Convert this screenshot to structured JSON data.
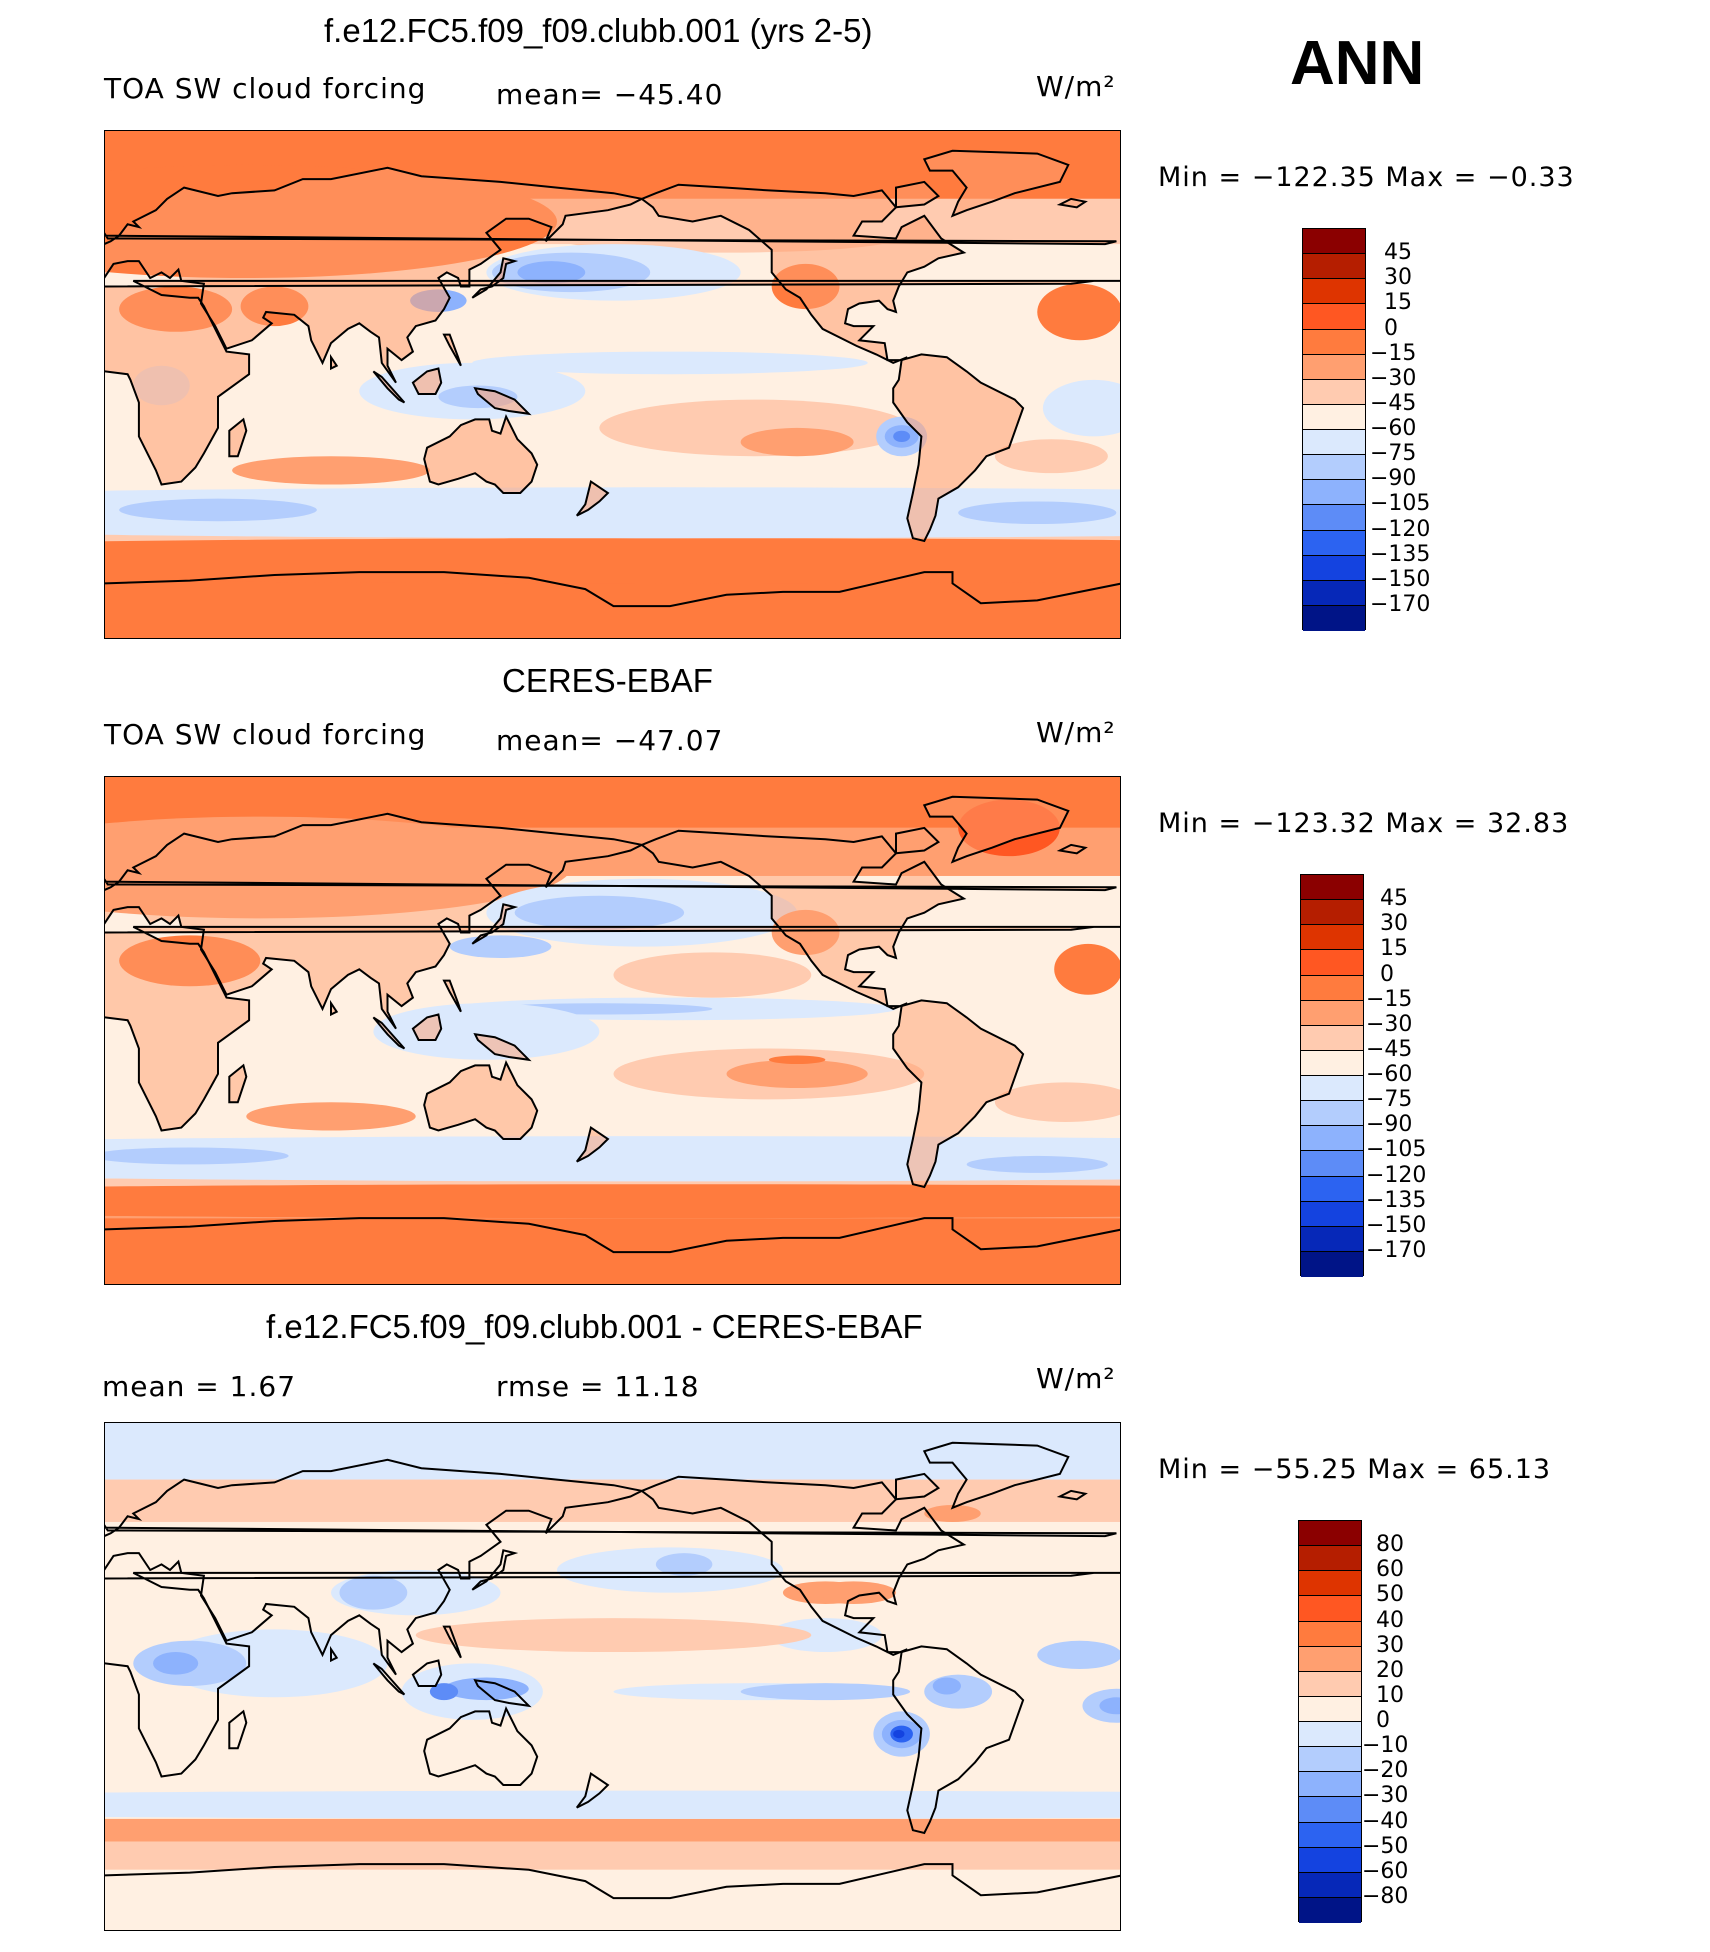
{
  "season": "ANN",
  "panels": [
    {
      "id": "model",
      "title": "f.e12.FC5.f09_f09.clubb.001 (yrs 2-5)",
      "left_label": "TOA SW cloud forcing",
      "stat_label": "mean= −45.40",
      "units": "W/m²",
      "min_max": "Min = −122.35 Max =  −0.33",
      "colorbar_labels": [
        "45",
        "30",
        "15",
        "0",
        "−15",
        "−30",
        "−45",
        "−60",
        "−75",
        "−90",
        "−105",
        "−120",
        "−135",
        "−150",
        "−170"
      ],
      "colors": [
        "#8b0000",
        "#b51e00",
        "#de3400",
        "#ff5722",
        "#ff7b3e",
        "#ff9f70",
        "#ffcbb0",
        "#fff0e2",
        "#dbe9fd",
        "#b3cdfd",
        "#8db2fd",
        "#5d8cf7",
        "#2c63f1",
        "#1443e0",
        "#0628b8",
        "#001487"
      ]
    },
    {
      "id": "obs",
      "title": "CERES-EBAF",
      "left_label": "TOA SW cloud forcing",
      "stat_label": "mean= −47.07",
      "units": "W/m²",
      "min_max": "Min = −123.32 Max =  32.83",
      "colorbar_labels": [
        "45",
        "30",
        "15",
        "0",
        "−15",
        "−30",
        "−45",
        "−60",
        "−75",
        "−90",
        "−105",
        "−120",
        "−135",
        "−150",
        "−170"
      ],
      "colors": [
        "#8b0000",
        "#b51e00",
        "#de3400",
        "#ff5722",
        "#ff7b3e",
        "#ff9f70",
        "#ffcbb0",
        "#fff0e2",
        "#dbe9fd",
        "#b3cdfd",
        "#8db2fd",
        "#5d8cf7",
        "#2c63f1",
        "#1443e0",
        "#0628b8",
        "#001487"
      ]
    },
    {
      "id": "diff",
      "title": "f.e12.FC5.f09_f09.clubb.001 - CERES-EBAF",
      "left_label": "mean =   1.67",
      "stat_label": "rmse =   11.18",
      "units": "W/m²",
      "min_max": "Min = −55.25 Max =  65.13",
      "colorbar_labels": [
        "80",
        "60",
        "50",
        "40",
        "30",
        "20",
        "10",
        "0",
        "−10",
        "−20",
        "−30",
        "−40",
        "−50",
        "−60",
        "−80"
      ],
      "colors": [
        "#8b0000",
        "#b51e00",
        "#de3400",
        "#ff5722",
        "#ff7b3e",
        "#ff9f70",
        "#ffcbb0",
        "#fff0e2",
        "#dbe9fd",
        "#b3cdfd",
        "#8db2fd",
        "#5d8cf7",
        "#2c63f1",
        "#1443e0",
        "#0628b8",
        "#001487"
      ]
    }
  ]
}
